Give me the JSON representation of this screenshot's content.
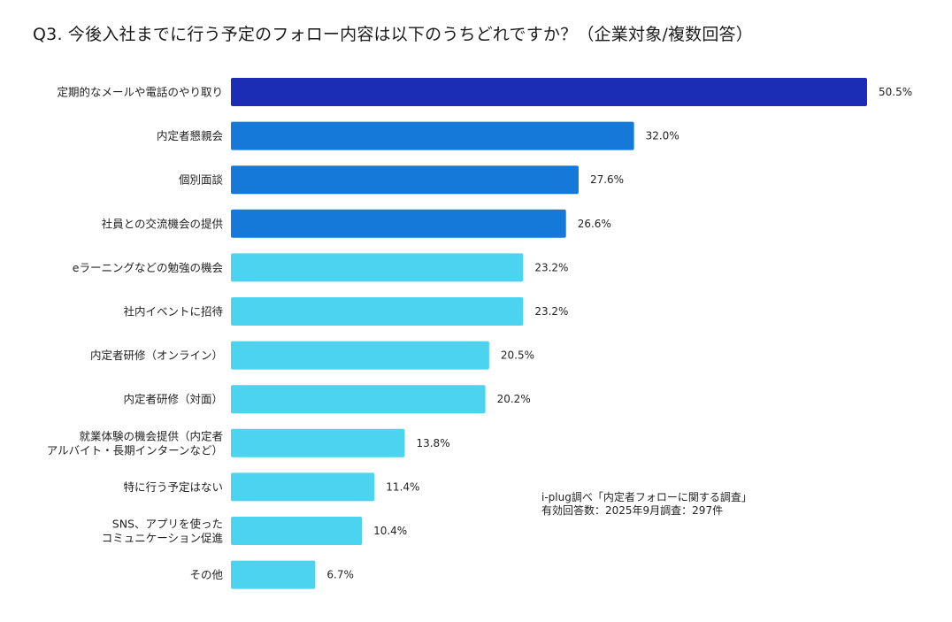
{
  "chart_data": {
    "type": "bar",
    "orientation": "horizontal",
    "title": "Q3. 今後入社までに行う予定のフォロー内容は以下のうちどれですか？（企業対象/複数回答）",
    "unit_suffix": "%",
    "categories": [
      [
        "定期的なメールや電話のやり取り"
      ],
      [
        "内定者懇親会"
      ],
      [
        "個別面談"
      ],
      [
        "社員との交流機会の提供"
      ],
      [
        "eラーニングなどの勉強の機会"
      ],
      [
        "社内イベントに招待"
      ],
      [
        "内定者研修（オンライン）"
      ],
      [
        "内定者研修（対面）"
      ],
      [
        "就業体験の機会提供（内定者",
        "アルバイト・長期インターンなど）"
      ],
      [
        "特に行う予定はない"
      ],
      [
        "SNS、アプリを使った",
        "コミュニケーション促進"
      ],
      [
        "その他"
      ]
    ],
    "values": [
      50.5,
      32.0,
      27.6,
      26.6,
      23.2,
      23.2,
      20.5,
      20.2,
      13.8,
      11.4,
      10.4,
      6.7
    ],
    "value_labels": [
      "50.5%",
      "32.0%",
      "27.6%",
      "26.6%",
      "23.2%",
      "23.2%",
      "20.5%",
      "20.2%",
      "13.8%",
      "11.4%",
      "10.4%",
      "6.7%"
    ],
    "colors": [
      "#1c2db5",
      "#1479d9",
      "#1479d9",
      "#1479d9",
      "#4bd3ef",
      "#4bd3ef",
      "#4bd3ef",
      "#4bd3ef",
      "#4bd3ef",
      "#4bd3ef",
      "#4bd3ef",
      "#4bd3ef"
    ],
    "xlim": [
      0,
      50.5
    ],
    "grid": false,
    "legend": "none"
  },
  "source": {
    "line1": "i-plug調べ「内定者フォローに関する調査」",
    "line2": "有効回答数：2025年9月調査：297件"
  }
}
